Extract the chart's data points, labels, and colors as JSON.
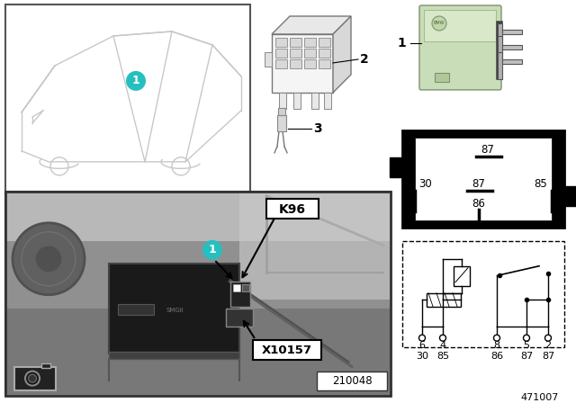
{
  "bg_color": "#ffffff",
  "part_number": "471007",
  "photo_label": "210048",
  "relay_color_light": "#c8ddb8",
  "relay_color_mid": "#b0cc98",
  "relay_color_dark": "#90aa78",
  "car_line_color": "#c8c8c8",
  "photo_bg": "#888888",
  "photo_border": "#000000",
  "teal_color": "#26bfbf",
  "item_labels": [
    "1",
    "2",
    "3"
  ],
  "rbox_pins": {
    "top_label": "87",
    "left_label": "30",
    "center_label": "87",
    "right_label": "85",
    "bottom_label": "86"
  },
  "sch_pin_numbers": [
    "6",
    "4",
    "8",
    "5",
    "2"
  ],
  "sch_pin_funcs": [
    "30",
    "85",
    "86",
    "87",
    "87"
  ],
  "k96_label": "K96",
  "x10157_label": "X10157"
}
